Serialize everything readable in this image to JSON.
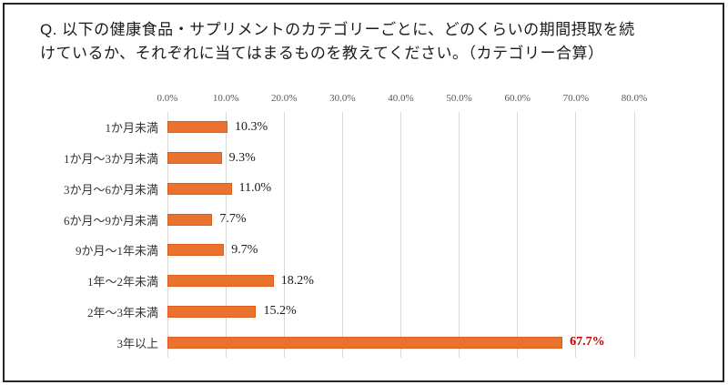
{
  "title": {
    "line1": "Q. 以下の健康食品・サプリメントのカテゴリーごとに、どのくらいの期間摂取を続",
    "line2": "けているか、それぞれに当てはまるものを教えてください。（カテゴリー合算）"
  },
  "chart_data": {
    "type": "bar",
    "orientation": "horizontal",
    "title": "Q. 以下の健康食品・サプリメントのカテゴリーごとに、どのくらいの期間摂取を続けているか、それぞれに当てはまるものを教えてください。（カテゴリー合算）",
    "categories": [
      "1か月未満",
      "1か月～3か月未満",
      "3か月～6か月未満",
      "6か月～9か月未満",
      "9か月～1年未満",
      "1年～2年未満",
      "2年～3年未満",
      "3年以上"
    ],
    "values": [
      10.3,
      9.3,
      11.0,
      7.7,
      9.7,
      18.2,
      15.2,
      67.7
    ],
    "value_labels": [
      "10.3%",
      "9.3%",
      "11.0%",
      "7.7%",
      "9.7%",
      "18.2%",
      "15.2%",
      "67.7%"
    ],
    "highlight_index": 7,
    "x_ticks": [
      "0.0%",
      "10.0%",
      "20.0%",
      "30.0%",
      "40.0%",
      "50.0%",
      "60.0%",
      "70.0%",
      "80.0%"
    ],
    "xlim": [
      0,
      80
    ],
    "grid": true,
    "legend": false,
    "colors": {
      "bar_fill": "#E9722E",
      "bar_border": "#DD5D1E",
      "value_label": "#1A1A1A",
      "highlight_label": "#C00000",
      "gridline": "#D9D9D9",
      "axis_text": "#595959",
      "category_text": "#333333"
    }
  }
}
